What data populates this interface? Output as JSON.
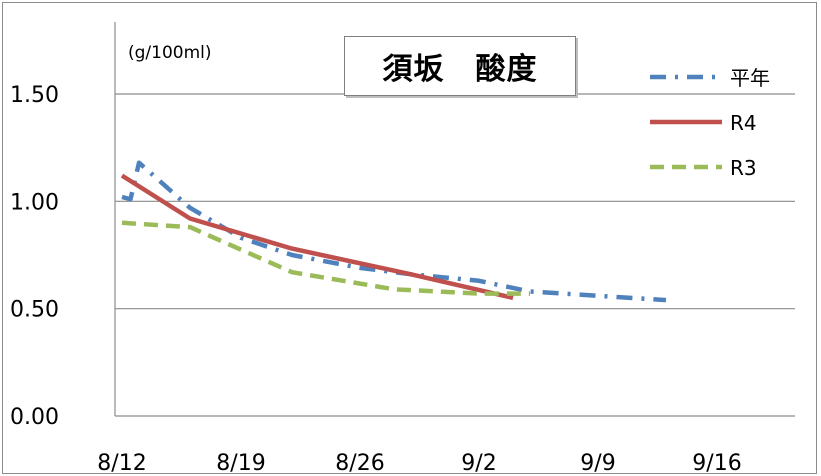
{
  "chart_data": {
    "type": "line",
    "title": "須坂　酸度",
    "unit_label": "(g/100ml)",
    "x_ticks": [
      "8/12",
      "8/19",
      "8/26",
      "9/2",
      "9/9",
      "9/16"
    ],
    "y_ticks": [
      "0.00",
      "0.50",
      "1.00",
      "1.50"
    ],
    "ylim": [
      0,
      1.7
    ],
    "grid": "horizontal",
    "legend_position": "top-right",
    "series": [
      {
        "name": "平年",
        "color": "#4f81bd",
        "style": "dash-dot",
        "points": [
          [
            0,
            1.02
          ],
          [
            0.5,
            1.01
          ],
          [
            1,
            1.18
          ],
          [
            4,
            0.97
          ],
          [
            7,
            0.83
          ],
          [
            10,
            0.75
          ],
          [
            14,
            0.69
          ],
          [
            17,
            0.66
          ],
          [
            21,
            0.63
          ],
          [
            24,
            0.58
          ],
          [
            28,
            0.56
          ],
          [
            32,
            0.54
          ]
        ]
      },
      {
        "name": "R4",
        "color": "#c0504d",
        "style": "solid",
        "points": [
          [
            0,
            1.12
          ],
          [
            4,
            0.92
          ],
          [
            10,
            0.78
          ],
          [
            17,
            0.66
          ],
          [
            23,
            0.55
          ]
        ]
      },
      {
        "name": "R3",
        "color": "#9bbb59",
        "style": "dashed",
        "points": [
          [
            0,
            0.9
          ],
          [
            4,
            0.88
          ],
          [
            10,
            0.67
          ],
          [
            16,
            0.59
          ],
          [
            21,
            0.57
          ],
          [
            24,
            0.57
          ]
        ]
      }
    ]
  }
}
